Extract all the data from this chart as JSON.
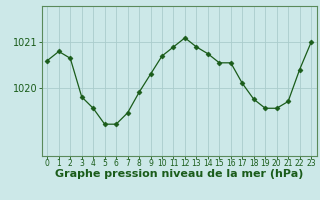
{
  "x": [
    0,
    1,
    2,
    3,
    4,
    5,
    6,
    7,
    8,
    9,
    10,
    11,
    12,
    13,
    14,
    15,
    16,
    17,
    18,
    19,
    20,
    21,
    22,
    23
  ],
  "y": [
    1020.6,
    1020.8,
    1020.65,
    1019.8,
    1019.55,
    1019.2,
    1019.2,
    1019.45,
    1019.9,
    1020.3,
    1020.7,
    1020.9,
    1021.1,
    1020.9,
    1020.75,
    1020.55,
    1020.55,
    1020.1,
    1019.75,
    1019.55,
    1019.55,
    1019.7,
    1020.4,
    1021.0
  ],
  "line_color": "#1a5c1a",
  "marker": "D",
  "marker_size": 2.5,
  "bg_color": "#cce8e8",
  "grid_color": "#aacccc",
  "axis_label_color": "#1a5c1a",
  "tick_color": "#1a5c1a",
  "ylabel_ticks": [
    1020,
    1021
  ],
  "xlabel": "Graphe pression niveau de la mer (hPa)",
  "ylim": [
    1018.5,
    1021.8
  ],
  "xlim": [
    -0.5,
    23.5
  ],
  "tick_fontsize": 7,
  "label_fontsize": 8,
  "spine_color": "#5a8a5a"
}
